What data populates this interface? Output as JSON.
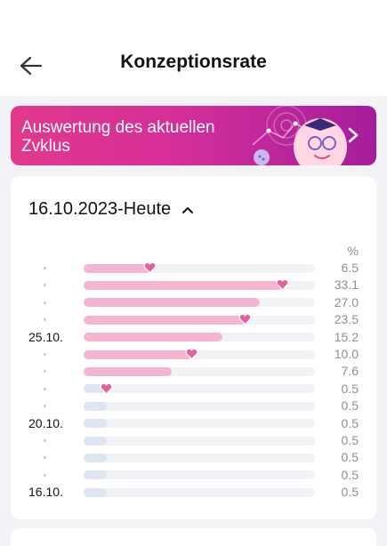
{
  "header": {
    "title": "Konzeptionsrate",
    "back_icon": "back-arrow-icon"
  },
  "banner": {
    "text": "Auswertung des aktuellen Zvklus",
    "arrow_icon": "chevron-right-icon",
    "illustration": "smiling-egg-with-glasses-illustration",
    "colors": [
      "#e2388c",
      "#a51d9c"
    ]
  },
  "card": {
    "date_range": "16.10.2023-Heute",
    "toggle_icon": "chevron-up-icon",
    "unit": "%",
    "rows": [
      {
        "label": "",
        "value": "6.5",
        "fraction": 0.29,
        "heart": true
      },
      {
        "label": "",
        "value": "33.1",
        "fraction": 0.86,
        "heart": true
      },
      {
        "label": "",
        "value": "27.0",
        "fraction": 0.76,
        "heart": false
      },
      {
        "label": "",
        "value": "23.5",
        "fraction": 0.7,
        "heart": true
      },
      {
        "label": "25.10.",
        "value": "15.2",
        "fraction": 0.6,
        "heart": false
      },
      {
        "label": "",
        "value": "10.0",
        "fraction": 0.47,
        "heart": true
      },
      {
        "label": "",
        "value": "7.6",
        "fraction": 0.38,
        "heart": false
      },
      {
        "label": "",
        "value": "0.5",
        "fraction": 0.1,
        "heart": true
      },
      {
        "label": "",
        "value": "0.5",
        "fraction": 0.1,
        "heart": false
      },
      {
        "label": "20.10.",
        "value": "0.5",
        "fraction": 0.1,
        "heart": false
      },
      {
        "label": "",
        "value": "0.5",
        "fraction": 0.1,
        "heart": false
      },
      {
        "label": "",
        "value": "0.5",
        "fraction": 0.1,
        "heart": false
      },
      {
        "label": "",
        "value": "0.5",
        "fraction": 0.1,
        "heart": false
      },
      {
        "label": "16.10.",
        "value": "0.5",
        "fraction": 0.1,
        "heart": false
      }
    ]
  },
  "colors": {
    "accent_pink": "#e5609f",
    "bar_fill": "#f3b5d0",
    "bar_fill_low": "#dde5f1",
    "track": "#f1f2f6"
  }
}
